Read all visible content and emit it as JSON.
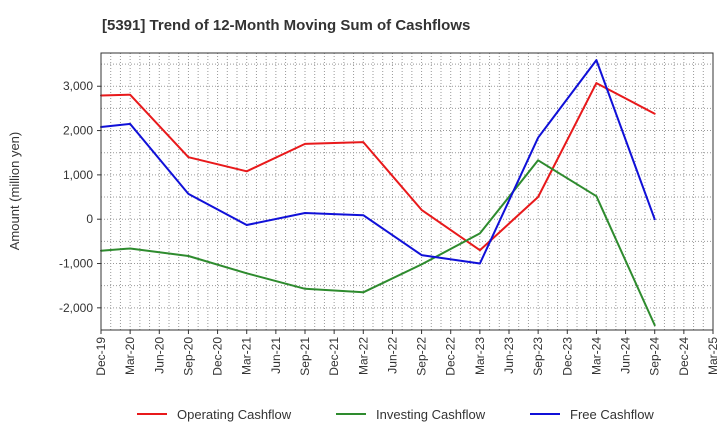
{
  "chart_data": {
    "type": "line",
    "title": "[5391]  Trend of 12-Month Moving Sum of Cashflows",
    "xlabel": "",
    "ylabel": "Amount (million yen)",
    "x_ticks": [
      "Dec-19",
      "Mar-20",
      "Jun-20",
      "Sep-20",
      "Dec-20",
      "Mar-21",
      "Jun-21",
      "Sep-21",
      "Dec-21",
      "Mar-22",
      "Jun-22",
      "Sep-22",
      "Dec-22",
      "Mar-23",
      "Jun-23",
      "Sep-23",
      "Dec-23",
      "Mar-24",
      "Jun-24",
      "Sep-24",
      "Dec-24",
      "Mar-25"
    ],
    "y_ticks": [
      3000,
      2000,
      1000,
      0,
      -1000,
      -2000
    ],
    "y_tick_labels": [
      "3,000",
      "2,000",
      "1,000",
      "0",
      "-1,000",
      "-2,000"
    ],
    "ylim": [
      -2500,
      3750
    ],
    "grid": true,
    "legend_position": "bottom",
    "series": [
      {
        "name": "Operating Cashflow",
        "color": "#e8191b",
        "points": [
          {
            "x": "Dec-19",
            "y": 2790
          },
          {
            "x": "Mar-20",
            "y": 2810
          },
          {
            "x": "Sep-20",
            "y": 1400
          },
          {
            "x": "Mar-21",
            "y": 1080
          },
          {
            "x": "Sep-21",
            "y": 1700
          },
          {
            "x": "Mar-22",
            "y": 1740
          },
          {
            "x": "Sep-22",
            "y": 210
          },
          {
            "x": "Mar-23",
            "y": -700
          },
          {
            "x": "Sep-23",
            "y": 500
          },
          {
            "x": "Mar-24",
            "y": 3070
          },
          {
            "x": "Sep-24",
            "y": 2380
          }
        ]
      },
      {
        "name": "Investing Cashflow",
        "color": "#2e8b2e",
        "points": [
          {
            "x": "Dec-19",
            "y": -710
          },
          {
            "x": "Mar-20",
            "y": -660
          },
          {
            "x": "Sep-20",
            "y": -830
          },
          {
            "x": "Mar-21",
            "y": -1220
          },
          {
            "x": "Sep-21",
            "y": -1570
          },
          {
            "x": "Mar-22",
            "y": -1650
          },
          {
            "x": "Sep-22",
            "y": -1020
          },
          {
            "x": "Mar-23",
            "y": -320
          },
          {
            "x": "Sep-23",
            "y": 1330
          },
          {
            "x": "Mar-24",
            "y": 520
          },
          {
            "x": "Sep-24",
            "y": -2390
          }
        ]
      },
      {
        "name": "Free Cashflow",
        "color": "#1010d8",
        "points": [
          {
            "x": "Dec-19",
            "y": 2080
          },
          {
            "x": "Mar-20",
            "y": 2150
          },
          {
            "x": "Sep-20",
            "y": 570
          },
          {
            "x": "Mar-21",
            "y": -130
          },
          {
            "x": "Sep-21",
            "y": 140
          },
          {
            "x": "Mar-22",
            "y": 90
          },
          {
            "x": "Sep-22",
            "y": -810
          },
          {
            "x": "Mar-23",
            "y": -1000
          },
          {
            "x": "Sep-23",
            "y": 1840
          },
          {
            "x": "Mar-24",
            "y": 3590
          },
          {
            "x": "Sep-24",
            "y": 0
          }
        ]
      }
    ]
  }
}
